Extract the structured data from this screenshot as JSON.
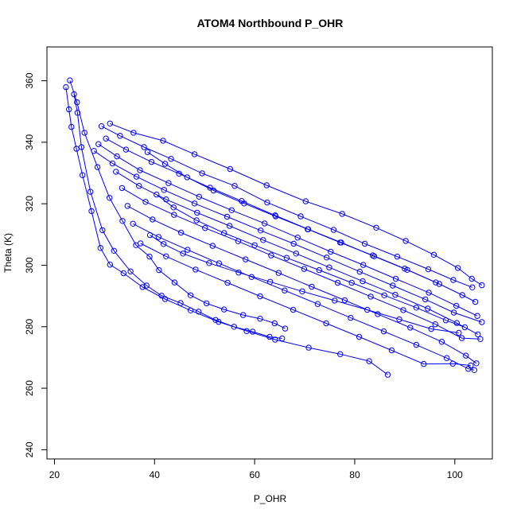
{
  "chart_data": {
    "type": "scatter",
    "title": "ATOM4 Northbound P_OHR",
    "xlabel": "P_OHR",
    "ylabel": "Theta (K)",
    "xlim": [
      18.5,
      107.5
    ],
    "ylim": [
      237,
      371
    ],
    "x_ticks": [
      20,
      40,
      60,
      80,
      100
    ],
    "y_ticks": [
      240,
      260,
      280,
      300,
      320,
      340,
      360
    ],
    "grid": false,
    "marker": "open-circle",
    "connected": true,
    "colors": {
      "series": "#0000ff",
      "axis": "#000000",
      "background": "#ffffff"
    },
    "series": [
      {
        "x": [
          23.1,
          24.5,
          26.0,
          28.6,
          31.0,
          33.6,
          36.3,
          39.0,
          40.9,
          44.0,
          47.2,
          50.4,
          53.9,
          57.7,
          61.1,
          64.0,
          66.1
        ],
        "y": [
          360.1,
          353.0,
          343.1,
          331.9,
          321.9,
          314.4,
          306.5,
          302.8,
          298.4,
          294.4,
          290.2,
          287.6,
          285.6,
          283.8,
          282.6,
          281.1,
          279.4
        ]
      },
      {
        "x": [
          23.9,
          24.6,
          25.4,
          27.2,
          29.6,
          31.9,
          35.2,
          38.4,
          41.4,
          45.2,
          48.8,
          52.2,
          55.9,
          59.6,
          63.0,
          65.5
        ],
        "y": [
          355.6,
          349.6,
          338.4,
          323.9,
          311.4,
          304.7,
          298.0,
          293.4,
          290.1,
          287.7,
          284.9,
          282.2,
          280.0,
          278.4,
          276.7,
          276.2
        ]
      },
      {
        "x": [
          22.3,
          22.9,
          23.4,
          24.4,
          25.6,
          27.4,
          29.2,
          31.1,
          33.8,
          37.6,
          42.1,
          47.2,
          52.8,
          58.4,
          64.1,
          70.8,
          77.1,
          82.9,
          86.6
        ],
        "y": [
          357.9,
          350.7,
          345.0,
          337.9,
          329.3,
          317.6,
          305.6,
          300.2,
          297.4,
          292.9,
          289.0,
          285.3,
          281.6,
          278.6,
          275.8,
          273.2,
          271.1,
          268.8,
          264.4
        ]
      },
      {
        "x": [
          31.1,
          35.8,
          41.7,
          48.0,
          55.1,
          62.4,
          70.2,
          77.5,
          84.3,
          90.2,
          95.8,
          100.6,
          103.4,
          105.4
        ],
        "y": [
          346.1,
          343.1,
          340.5,
          336.1,
          331.3,
          326.0,
          320.8,
          316.7,
          312.2,
          307.9,
          303.4,
          299.1,
          295.6,
          293.5
        ]
      },
      {
        "x": [
          29.4,
          33.1,
          37.9,
          43.3,
          49.5,
          56.0,
          62.5,
          69.2,
          75.8,
          82.0,
          88.5,
          94.7,
          99.7,
          103.5
        ],
        "y": [
          345.2,
          342.1,
          338.4,
          334.6,
          329.9,
          325.8,
          320.4,
          315.9,
          311.5,
          307.0,
          302.8,
          298.7,
          295.2,
          292.8
        ]
      },
      {
        "x": [
          30.3,
          34.3,
          39.4,
          44.9,
          51.1,
          57.4,
          64.1,
          70.7,
          77.3,
          83.9,
          90.5,
          96.9,
          101.5,
          104.1
        ],
        "y": [
          341.2,
          337.6,
          333.6,
          329.8,
          325.2,
          320.9,
          316.2,
          311.7,
          307.4,
          302.9,
          298.5,
          293.9,
          290.3,
          288.1
        ]
      },
      {
        "x": [
          28.8,
          32.5,
          37.1,
          42.8,
          48.9,
          55.4,
          62.0,
          68.6,
          75.2,
          81.7,
          88.2,
          94.8,
          100.3,
          104.5
        ],
        "y": [
          339.4,
          335.4,
          330.9,
          326.7,
          322.3,
          317.9,
          313.6,
          309.0,
          304.4,
          300.1,
          295.6,
          291.1,
          286.8,
          283.5
        ]
      },
      {
        "x": [
          27.9,
          31.6,
          36.4,
          41.9,
          48.0,
          54.5,
          61.2,
          67.8,
          74.4,
          81.0,
          87.6,
          94.1,
          99.8,
          105.4
        ],
        "y": [
          337.2,
          333.1,
          328.8,
          324.5,
          320.1,
          315.8,
          311.3,
          307.0,
          302.5,
          297.9,
          293.4,
          288.9,
          284.6,
          281.5
        ]
      },
      {
        "x": [
          32.3,
          36.9,
          42.3,
          48.5,
          55.0,
          61.7,
          68.3,
          74.9,
          81.6,
          88.1,
          94.6,
          100.4,
          104.6
        ],
        "y": [
          330.4,
          325.8,
          321.4,
          317.1,
          312.8,
          308.2,
          303.8,
          299.3,
          294.8,
          290.4,
          285.9,
          281.2,
          277.5
        ]
      },
      {
        "x": [
          33.5,
          38.2,
          43.9,
          50.1,
          56.7,
          63.3,
          69.9,
          76.6,
          83.2,
          89.7,
          96.1,
          101.4,
          105.1
        ],
        "y": [
          325.1,
          320.6,
          316.4,
          312.1,
          307.8,
          303.2,
          298.8,
          294.3,
          289.8,
          285.4,
          280.8,
          276.3,
          276.0
        ]
      },
      {
        "x": [
          34.6,
          39.6,
          45.3,
          51.6,
          58.2,
          64.8,
          71.4,
          78.0,
          84.6,
          91.1,
          97.4,
          102.2,
          104.3
        ],
        "y": [
          319.3,
          314.9,
          310.6,
          306.3,
          301.9,
          297.5,
          293.0,
          288.6,
          284.1,
          279.7,
          275.1,
          270.6,
          268.1
        ]
      },
      {
        "x": [
          35.7,
          40.8,
          46.6,
          52.9,
          59.4,
          66.0,
          72.6,
          79.2,
          85.8,
          92.3,
          98.4,
          102.7,
          103.9
        ],
        "y": [
          313.5,
          309.2,
          305.0,
          300.6,
          296.2,
          291.8,
          287.4,
          282.9,
          278.5,
          274.1,
          269.8,
          266.3,
          265.9
        ]
      },
      {
        "x": [
          37.2,
          42.3,
          48.2,
          54.6,
          61.1,
          67.7,
          74.3,
          80.9,
          87.4,
          93.8,
          99.6,
          103.2
        ],
        "y": [
          307.1,
          302.9,
          298.6,
          294.3,
          289.9,
          285.5,
          281.1,
          276.7,
          272.3,
          267.9,
          268.0,
          267.4
        ]
      },
      {
        "x": [
          38.6,
          42.1,
          46.5,
          51.8,
          57.9,
          64.2,
          70.6,
          77.1,
          83.6,
          90.0,
          96.2
        ],
        "y": [
          336.8,
          333.0,
          328.6,
          324.3,
          320.1,
          315.9,
          311.7,
          307.4,
          303.2,
          298.9,
          294.4
        ]
      },
      {
        "x": [
          39.1,
          41.8,
          45.7,
          50.9,
          56.8,
          63.1,
          69.5,
          76.0,
          82.5,
          88.9,
          95.3,
          100.8
        ],
        "y": [
          309.8,
          306.9,
          303.8,
          300.7,
          297.6,
          294.6,
          291.5,
          288.5,
          285.5,
          282.4,
          279.3,
          278.0
        ]
      },
      {
        "x": [
          40.4,
          43.8,
          48.4,
          53.9,
          60.0,
          66.4,
          72.9,
          79.4,
          85.9,
          92.3,
          98.2,
          102.0
        ],
        "y": [
          323.0,
          318.8,
          314.6,
          310.5,
          306.5,
          302.4,
          298.4,
          294.3,
          290.2,
          286.2,
          282.1,
          279.8
        ]
      }
    ]
  }
}
